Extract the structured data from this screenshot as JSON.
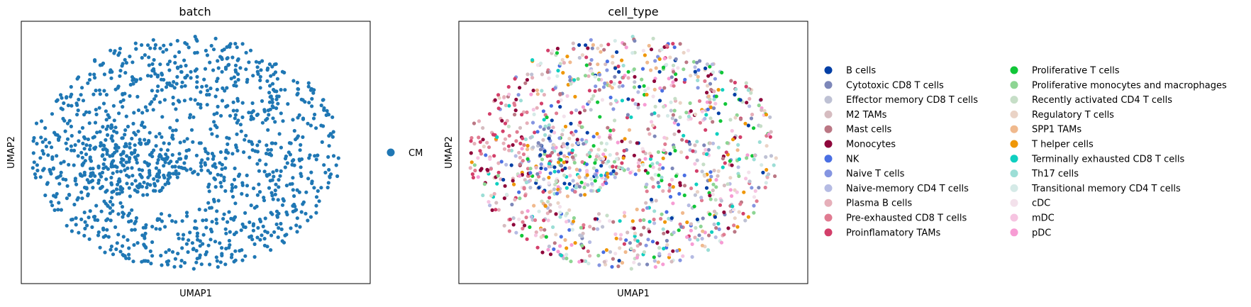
{
  "chart_data": [
    {
      "type": "scatter",
      "title": "batch",
      "xlabel": "UMAP1",
      "ylabel": "UMAP2",
      "grid": false,
      "legend_placement": "right",
      "ticks_shown": false,
      "n_points_approx": 1300,
      "series": [
        {
          "name": "CM",
          "color": "#1f77b4"
        }
      ]
    },
    {
      "type": "scatter",
      "title": "cell_type",
      "xlabel": "UMAP1",
      "ylabel": "UMAP2",
      "grid": false,
      "legend_placement": "right",
      "legend_columns": 2,
      "ticks_shown": false,
      "n_points_approx": 1300,
      "series": [
        {
          "name": "B cells",
          "color": "#023fa5"
        },
        {
          "name": "Cytotoxic CD8 T cells",
          "color": "#7d87b9"
        },
        {
          "name": "Effector memory CD8 T cells",
          "color": "#bec1d4"
        },
        {
          "name": "M2 TAMs",
          "color": "#d6bcc0"
        },
        {
          "name": "Mast cells",
          "color": "#bb7784"
        },
        {
          "name": "Monocytes",
          "color": "#8e063b"
        },
        {
          "name": "NK",
          "color": "#4a6fe3"
        },
        {
          "name": "Naive T cells",
          "color": "#8595e1"
        },
        {
          "name": "Naive-memory CD4 T cells",
          "color": "#b5bbe3"
        },
        {
          "name": "Plasma B cells",
          "color": "#e6afb9"
        },
        {
          "name": "Pre-exhausted CD8 T cells",
          "color": "#e07b91"
        },
        {
          "name": "Proinflamatory TAMs",
          "color": "#d33f6a"
        },
        {
          "name": "Proliferative T cells",
          "color": "#11c638"
        },
        {
          "name": "Proliferative monocytes and macrophages",
          "color": "#8dd593"
        },
        {
          "name": "Recently activated CD4 T cells",
          "color": "#c6dec7"
        },
        {
          "name": "Regulatory T cells",
          "color": "#ead3c6"
        },
        {
          "name": "SPP1 TAMs",
          "color": "#f0b98d"
        },
        {
          "name": "T helper cells",
          "color": "#ef9708"
        },
        {
          "name": "Terminally exhausted CD8 T cells",
          "color": "#0fcfc0"
        },
        {
          "name": "Th17 cells",
          "color": "#9cded6"
        },
        {
          "name": "Transitional memory CD4 T cells",
          "color": "#d5eae7"
        },
        {
          "name": "cDC",
          "color": "#f3e1eb"
        },
        {
          "name": "mDC",
          "color": "#f6c4e1"
        },
        {
          "name": "pDC",
          "color": "#f79cd4"
        }
      ]
    }
  ]
}
